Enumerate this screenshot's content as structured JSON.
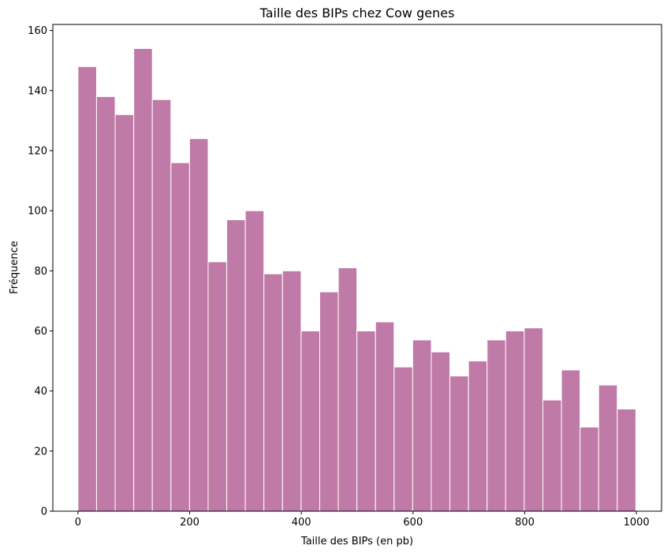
{
  "chart_data": {
    "type": "bar",
    "title": "Taille des BIPs chez Cow genes",
    "xlabel": "Taille des BIPs (en pb)",
    "ylabel": "Fréquence",
    "xlim": [
      -45,
      1045
    ],
    "ylim": [
      0,
      162
    ],
    "x_ticks": [
      0,
      200,
      400,
      600,
      800,
      1000
    ],
    "y_ticks": [
      0,
      20,
      40,
      60,
      80,
      100,
      120,
      140,
      160
    ],
    "bin_width": 33.3,
    "bin_start": 0,
    "values": [
      148,
      138,
      132,
      154,
      137,
      116,
      124,
      83,
      97,
      100,
      79,
      80,
      60,
      73,
      81,
      60,
      63,
      48,
      57,
      53,
      45,
      50,
      57,
      60,
      61,
      37,
      47,
      28,
      42,
      34
    ],
    "bar_color": "#c07aa7",
    "edge_color": "#ffffff",
    "grid": false
  }
}
